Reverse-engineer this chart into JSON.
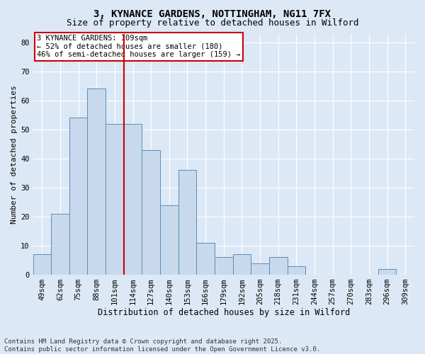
{
  "title1": "3, KYNANCE GARDENS, NOTTINGHAM, NG11 7FX",
  "title2": "Size of property relative to detached houses in Wilford",
  "xlabel": "Distribution of detached houses by size in Wilford",
  "ylabel": "Number of detached properties",
  "categories": [
    "49sqm",
    "62sqm",
    "75sqm",
    "88sqm",
    "101sqm",
    "114sqm",
    "127sqm",
    "140sqm",
    "153sqm",
    "166sqm",
    "179sqm",
    "192sqm",
    "205sqm",
    "218sqm",
    "231sqm",
    "244sqm",
    "257sqm",
    "270sqm",
    "283sqm",
    "296sqm",
    "309sqm"
  ],
  "values": [
    7,
    21,
    54,
    64,
    52,
    52,
    43,
    24,
    36,
    11,
    6,
    7,
    4,
    6,
    3,
    0,
    0,
    0,
    0,
    2,
    0
  ],
  "bar_color": "#c8d9ed",
  "bar_edge_color": "#5b8db8",
  "vline_color": "#cc0000",
  "vline_pos": 4.5,
  "annotation_text": "3 KYNANCE GARDENS: 109sqm\n← 52% of detached houses are smaller (180)\n46% of semi-detached houses are larger (159) →",
  "annotation_box_facecolor": "#ffffff",
  "annotation_box_edgecolor": "#cc0000",
  "footnote": "Contains HM Land Registry data © Crown copyright and database right 2025.\nContains public sector information licensed under the Open Government Licence v3.0.",
  "ylim": [
    0,
    83
  ],
  "yticks": [
    0,
    10,
    20,
    30,
    40,
    50,
    60,
    70,
    80
  ],
  "bg_color": "#dce8f5",
  "plot_bg_color": "#dce8f5",
  "grid_color": "#ffffff",
  "title1_fontsize": 10,
  "title2_fontsize": 9,
  "xlabel_fontsize": 8.5,
  "ylabel_fontsize": 8,
  "tick_fontsize": 7.5,
  "annot_fontsize": 7.5,
  "footnote_fontsize": 6.5
}
